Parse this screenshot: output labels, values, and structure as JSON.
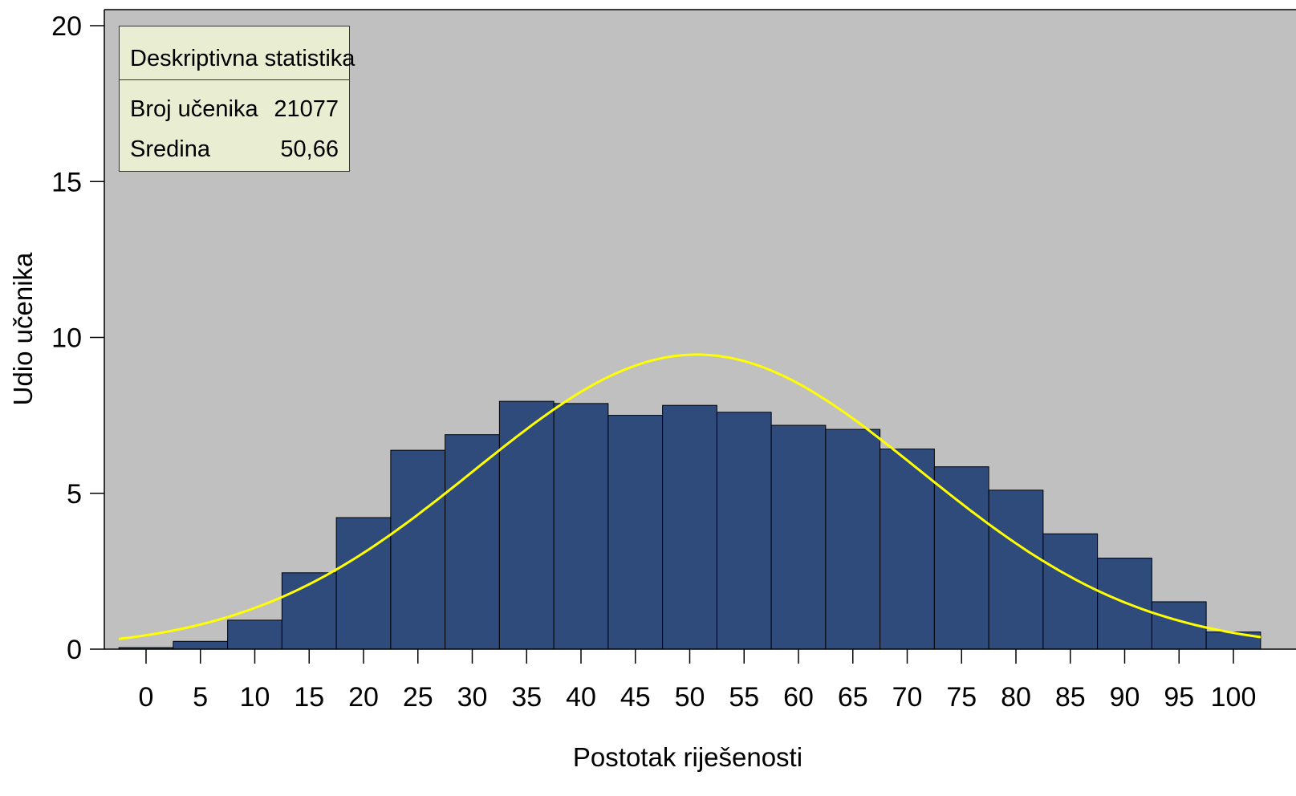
{
  "chart_data": {
    "type": "bar",
    "xlabel": "Postotak riješenosti",
    "ylabel": "Udio učenika",
    "ylim": [
      0,
      20
    ],
    "y_ticks": [
      0,
      5,
      10,
      15,
      20
    ],
    "categories": [
      "0",
      "5",
      "10",
      "15",
      "20",
      "25",
      "30",
      "35",
      "40",
      "45",
      "50",
      "55",
      "60",
      "65",
      "70",
      "75",
      "80",
      "85",
      "90",
      "95",
      "100"
    ],
    "values": [
      0.05,
      0.25,
      0.93,
      2.45,
      4.22,
      6.38,
      6.88,
      7.95,
      7.88,
      7.5,
      7.82,
      7.6,
      7.18,
      7.05,
      6.42,
      5.85,
      5.1,
      3.7,
      2.92,
      1.52,
      0.55
    ],
    "normal_curve": {
      "mean": 50.66,
      "peak": 9.45,
      "sd": 20.5
    },
    "colors": {
      "plot_bg": "#c0c0c0",
      "bar": "#2f4b7c",
      "curve": "#ffff00",
      "stats_bg": "#e9eed3"
    },
    "grid": false,
    "legend": "none"
  },
  "stats_box": {
    "title": "Deskriptivna statistika",
    "rows": [
      {
        "label": "Broj učenika",
        "value": "21077"
      },
      {
        "label": "Sredina",
        "value": "50,66"
      }
    ]
  }
}
